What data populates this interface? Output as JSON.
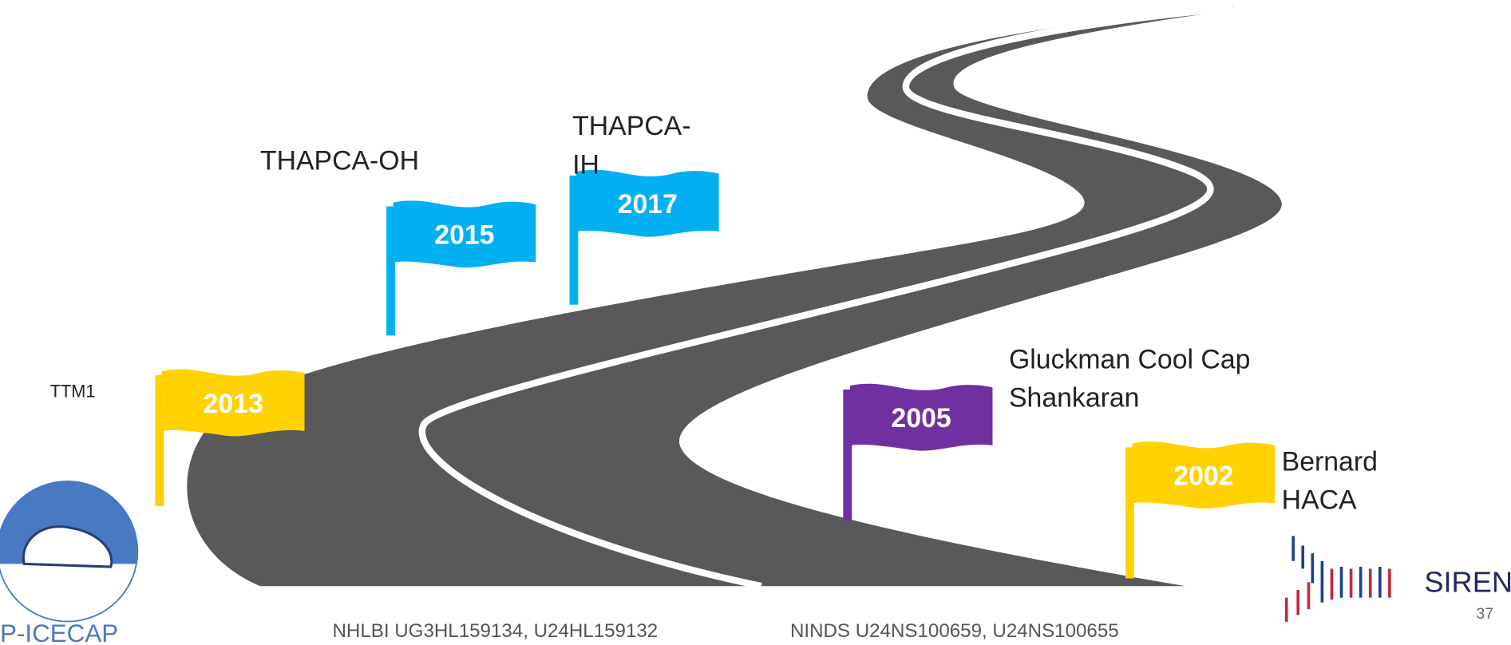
{
  "flags": [
    {
      "year": "2013",
      "label": [
        "TTM1"
      ],
      "color": "#ffd200"
    },
    {
      "year": "2015",
      "label": [
        "THAPCA-OH"
      ],
      "color": "#00b0f0"
    },
    {
      "year": "2017",
      "label": [
        "THAPCA-",
        "IH"
      ],
      "color": "#00b0f0"
    },
    {
      "year": "2005",
      "label": [
        "Gluckman  Cool Cap",
        "Shankaran"
      ],
      "color": "#7030a0"
    },
    {
      "year": "2002",
      "label": [
        "Bernard",
        "HACA"
      ],
      "color": "#ffd200"
    }
  ],
  "footer": {
    "funding": [
      "NHLBI UG3HL159134, U24HL159132",
      "NINDS U24NS100659, U24NS100655"
    ],
    "page_number": "37"
  },
  "logos": {
    "left": "P-ICECAP",
    "right": "SIREN"
  }
}
